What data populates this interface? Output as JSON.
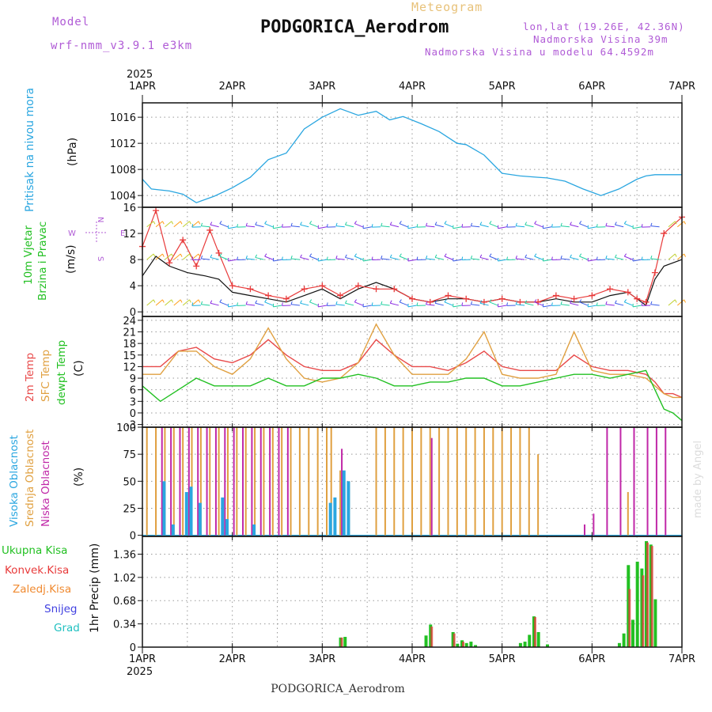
{
  "header": {
    "model_label": "Model",
    "model_name": "wrf-nmm_v3.9.1 e3km",
    "meteogram_label": "Meteogram",
    "station": "PODGORICA_Aerodrom",
    "coords": "lon,lat (19.26E, 42.36N)",
    "elevation": "Nadmorska Visina 39m",
    "model_elevation": "Nadmorska Visina u modelu 64.4592m",
    "year": "2025",
    "footer_station": "PODGORICA_Aerodrom",
    "watermark": "made by Angel"
  },
  "colors": {
    "pressure": "#2aa6e0",
    "wind_speed": "#111111",
    "wind_gust": "#e83a3a",
    "temp2m": "#e84a4a",
    "sfc_temp": "#e0a040",
    "dewpt": "#22c022",
    "cloud_high": "#2aa6e0",
    "cloud_mid": "#e0a040",
    "cloud_low": "#c028a8",
    "precip_total": "#22c022",
    "precip_conv": "#e83a3a",
    "snow": "#4040e0",
    "grad": "#20c0c0"
  },
  "chart_data": [
    {
      "type": "line",
      "title": "Pritisak na nivou mora",
      "ylabel": "(hPa)",
      "yticks": [
        1004,
        1008,
        1012,
        1016
      ],
      "ylim": [
        1002.2,
        1018.2
      ],
      "x_days": [
        0,
        0.1,
        0.3,
        0.45,
        0.6,
        0.8,
        1.0,
        1.2,
        1.4,
        1.6,
        1.8,
        2.0,
        2.2,
        2.4,
        2.6,
        2.75,
        2.9,
        3.1,
        3.3,
        3.5,
        3.6,
        3.8,
        4.0,
        4.2,
        4.4,
        4.5,
        4.7,
        4.9,
        5.0,
        5.1,
        5.3,
        5.5,
        5.6,
        5.7,
        5.8,
        6.0
      ],
      "values": [
        1006.5,
        1005.0,
        1004.7,
        1004.2,
        1002.9,
        1003.9,
        1005.2,
        1006.8,
        1009.5,
        1010.5,
        1014.2,
        1016.0,
        1017.3,
        1016.3,
        1016.9,
        1015.6,
        1016.1,
        1015.0,
        1013.8,
        1012.0,
        1011.8,
        1010.2,
        1007.4,
        1007.0,
        1006.8,
        1006.7,
        1006.2,
        1005.0,
        1004.5,
        1004.0,
        1005.0,
        1006.5,
        1007.0,
        1007.2,
        1007.2,
        1007.2
      ]
    },
    {
      "type": "line",
      "title": "10m Vjetar Brzina i Pravac",
      "ylabel": "(m/s)",
      "yticks": [
        0,
        4,
        8,
        12,
        16
      ],
      "ylim": [
        -0.7,
        16
      ],
      "series": [
        {
          "name": "wind speed",
          "x_days": [
            0,
            0.15,
            0.3,
            0.5,
            0.7,
            0.85,
            1.0,
            1.2,
            1.4,
            1.6,
            1.8,
            2.0,
            2.2,
            2.4,
            2.6,
            2.8,
            3.0,
            3.2,
            3.4,
            3.6,
            3.8,
            4.0,
            4.2,
            4.4,
            4.6,
            4.8,
            5.0,
            5.2,
            5.4,
            5.5,
            5.6,
            5.7,
            5.8,
            6.0
          ],
          "values": [
            5.5,
            8.5,
            7.0,
            6.0,
            5.5,
            5.0,
            3.0,
            2.5,
            2.0,
            1.5,
            2.5,
            3.5,
            2.0,
            3.5,
            4.5,
            3.5,
            2.0,
            1.5,
            2.0,
            2.0,
            1.5,
            2.0,
            1.5,
            1.5,
            2.0,
            1.5,
            1.5,
            2.5,
            3.0,
            2.0,
            1.0,
            5.0,
            7.0,
            8.0
          ]
        },
        {
          "name": "gust",
          "x_days": [
            0,
            0.15,
            0.3,
            0.45,
            0.6,
            0.75,
            0.85,
            1.0,
            1.2,
            1.4,
            1.6,
            1.8,
            2.0,
            2.2,
            2.4,
            2.6,
            2.8,
            3.0,
            3.2,
            3.4,
            3.6,
            3.8,
            4.0,
            4.2,
            4.4,
            4.6,
            4.8,
            5.0,
            5.2,
            5.4,
            5.5,
            5.6,
            5.7,
            5.8,
            6.0
          ],
          "values": [
            10.0,
            15.5,
            7.5,
            11.0,
            7.0,
            12.5,
            9.0,
            4.0,
            3.5,
            2.5,
            2.0,
            3.5,
            4.0,
            2.5,
            4.0,
            3.5,
            3.5,
            2.0,
            1.5,
            2.5,
            2.0,
            1.5,
            2.0,
            1.5,
            1.5,
            2.5,
            2.0,
            2.5,
            3.5,
            3.0,
            2.0,
            1.5,
            6.0,
            12.0,
            14.5
          ]
        }
      ],
      "side_labels": [
        "N",
        "E",
        "W",
        "S"
      ]
    },
    {
      "type": "line",
      "ylabel": "(C)",
      "title": "2m Temp / SFC Temp / dewpt Temp",
      "yticks": [
        -3,
        0,
        3,
        6,
        9,
        12,
        15,
        18,
        21,
        24
      ],
      "ylim": [
        -3.7,
        25
      ],
      "series": [
        {
          "name": "2m Temp",
          "x_days": [
            0,
            0.2,
            0.4,
            0.6,
            0.8,
            1.0,
            1.2,
            1.4,
            1.6,
            1.8,
            2.0,
            2.2,
            2.4,
            2.6,
            2.8,
            3.0,
            3.2,
            3.4,
            3.6,
            3.8,
            4.0,
            4.2,
            4.4,
            4.6,
            4.8,
            5.0,
            5.2,
            5.4,
            5.6,
            5.7,
            5.8,
            5.9,
            6.0
          ],
          "values": [
            12,
            12,
            16,
            17,
            14,
            13,
            15,
            19,
            15,
            12,
            11,
            11,
            13,
            19,
            15,
            12,
            12,
            11,
            13,
            16,
            12,
            11,
            11,
            11,
            15,
            12,
            11,
            11,
            10,
            8,
            5,
            5,
            4
          ]
        },
        {
          "name": "SFC Temp",
          "x_days": [
            0,
            0.2,
            0.4,
            0.6,
            0.8,
            1.0,
            1.2,
            1.4,
            1.6,
            1.8,
            2.0,
            2.2,
            2.4,
            2.6,
            2.8,
            3.0,
            3.2,
            3.4,
            3.6,
            3.8,
            4.0,
            4.2,
            4.4,
            4.6,
            4.8,
            5.0,
            5.2,
            5.4,
            5.6,
            5.7,
            5.8,
            5.9,
            6.0
          ],
          "values": [
            10,
            10,
            16,
            16,
            12,
            10,
            14,
            22,
            14,
            9,
            8,
            9,
            13,
            23,
            15,
            10,
            10,
            10,
            14,
            21,
            10,
            9,
            9,
            10,
            21,
            11,
            10,
            10,
            9,
            7,
            5,
            4,
            4
          ]
        },
        {
          "name": "dewpt Temp",
          "x_days": [
            0,
            0.2,
            0.4,
            0.6,
            0.8,
            1.0,
            1.2,
            1.4,
            1.6,
            1.8,
            2.0,
            2.2,
            2.4,
            2.6,
            2.8,
            3.0,
            3.2,
            3.4,
            3.6,
            3.8,
            4.0,
            4.2,
            4.4,
            4.6,
            4.8,
            5.0,
            5.2,
            5.4,
            5.6,
            5.7,
            5.8,
            5.9,
            6.0
          ],
          "values": [
            7,
            3,
            6,
            9,
            7,
            7,
            7,
            9,
            7,
            7,
            9,
            9,
            10,
            9,
            7,
            7,
            8,
            8,
            9,
            9,
            7,
            7,
            8,
            9,
            10,
            10,
            9,
            10,
            11,
            6,
            1,
            0,
            -2
          ]
        }
      ]
    },
    {
      "type": "bar",
      "ylabel": "(%)",
      "title": "Visoka / Srednja / Niska Oblacnost",
      "yticks": [
        0,
        25,
        50,
        75,
        100
      ],
      "ylim": [
        -1,
        100
      ],
      "series": [
        {
          "name": "Visoka Oblacnost",
          "x_days": [
            0.25,
            0.35,
            0.5,
            0.55,
            0.65,
            0.9,
            0.95,
            1.25,
            2.1,
            2.15,
            2.25,
            2.3
          ],
          "values": [
            50,
            10,
            40,
            45,
            30,
            35,
            15,
            10,
            30,
            35,
            60,
            50
          ]
        },
        {
          "name": "Srednja Oblacnost",
          "x_days": [
            0.05,
            0.15,
            0.25,
            0.35,
            0.45,
            0.55,
            0.65,
            0.75,
            0.85,
            0.95,
            1.05,
            1.15,
            1.25,
            1.35,
            1.45,
            1.55,
            1.65,
            1.75,
            1.85,
            1.95,
            2.05,
            2.1,
            2.2,
            2.3,
            2.6,
            2.7,
            2.8,
            2.9,
            3.0,
            3.1,
            3.2,
            3.3,
            3.4,
            3.5,
            3.6,
            3.7,
            3.8,
            3.9,
            4.0,
            4.1,
            4.2,
            4.3,
            4.4,
            5.4
          ],
          "values": [
            100,
            100,
            100,
            100,
            100,
            100,
            100,
            100,
            100,
            100,
            100,
            100,
            100,
            100,
            100,
            100,
            100,
            100,
            100,
            100,
            100,
            100,
            60,
            50,
            100,
            100,
            100,
            100,
            100,
            100,
            100,
            100,
            100,
            100,
            100,
            100,
            100,
            100,
            100,
            100,
            100,
            100,
            75,
            40
          ]
        },
        {
          "name": "Niska Oblacnost",
          "x_days": [
            0.2,
            0.3,
            0.4,
            0.5,
            0.6,
            0.7,
            0.8,
            0.9,
            1.0,
            1.1,
            1.2,
            1.3,
            1.4,
            1.5,
            1.6,
            2.2,
            3.2,
            4.9,
            5.0,
            5.15,
            5.3,
            5.45,
            5.6,
            5.7,
            5.8
          ],
          "values": [
            100,
            100,
            100,
            100,
            100,
            100,
            100,
            100,
            100,
            100,
            100,
            100,
            100,
            100,
            100,
            80,
            90,
            10,
            20,
            100,
            100,
            100,
            100,
            100,
            100
          ]
        }
      ]
    },
    {
      "type": "bar",
      "ylabel": "1hr Precip (mm)",
      "yticks": [
        0,
        0.34,
        0.68,
        1.02,
        1.36
      ],
      "ylim": [
        0,
        1.62
      ],
      "series": [
        {
          "name": "Ukupna Kisa",
          "x_days": [
            2.2,
            2.25,
            3.15,
            3.2,
            3.45,
            3.5,
            3.55,
            3.6,
            3.65,
            3.7,
            4.2,
            4.25,
            4.3,
            4.35,
            4.4,
            4.5,
            5.3,
            5.35,
            5.4,
            5.45,
            5.5,
            5.55,
            5.6,
            5.65,
            5.7
          ],
          "values": [
            0.14,
            0.15,
            0.17,
            0.33,
            0.22,
            0.05,
            0.1,
            0.06,
            0.08,
            0.03,
            0.06,
            0.08,
            0.18,
            0.45,
            0.22,
            0.04,
            0.06,
            0.2,
            1.2,
            0.4,
            1.25,
            1.15,
            1.55,
            1.5,
            0.7
          ]
        },
        {
          "name": "Konvek.Kisa",
          "x_days": [
            2.2,
            3.2,
            3.45,
            3.55,
            4.35,
            5.4,
            5.55,
            5.6,
            5.65
          ],
          "values": [
            0.14,
            0.3,
            0.2,
            0.08,
            0.44,
            0.85,
            1.05,
            1.53,
            1.48
          ]
        }
      ],
      "legend": [
        "Ukupna Kisa",
        "Konvek.Kisa",
        "Zaledj.Kisa",
        "Snijeg",
        "Grad"
      ]
    }
  ],
  "x_axis": {
    "labels": [
      "1APR",
      "2APR",
      "3APR",
      "4APR",
      "5APR",
      "6APR",
      "7APR"
    ],
    "days": 6
  }
}
